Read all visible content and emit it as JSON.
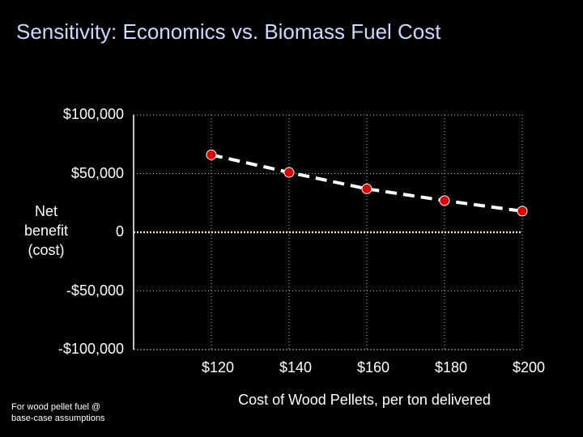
{
  "colors": {
    "background": "#000000",
    "title": "#c9d9ff",
    "text": "#ffffff",
    "marker_fill": "#e00000",
    "grid": "#bbbbbb",
    "zero_line": "#f2e6b0"
  },
  "chart_data": {
    "type": "line",
    "title": "Sensitivity: Economics vs. Biomass Fuel Cost",
    "xlabel": "Cost of Wood Pellets, per ton delivered",
    "ylabel_lines": [
      "Net",
      "benefit",
      "(cost)"
    ],
    "footnote_lines": [
      "For wood pellet fuel @",
      "base-case assumptions"
    ],
    "x": [
      120,
      140,
      160,
      180,
      200
    ],
    "x_tick_labels": [
      "$120",
      "$140",
      "$160",
      "$180",
      "$200"
    ],
    "x_range": [
      100,
      200
    ],
    "ylim": [
      -100000,
      100000
    ],
    "y_ticks": [
      100000,
      50000,
      0,
      -50000,
      -100000
    ],
    "y_tick_labels": [
      "$100,000",
      "$50,000",
      "0",
      "-$50,000",
      "-$100,000"
    ],
    "series": [
      {
        "name": "Net benefit",
        "values": [
          66000,
          51000,
          37000,
          27000,
          18000
        ],
        "style": "dashed"
      }
    ],
    "grid": true
  }
}
